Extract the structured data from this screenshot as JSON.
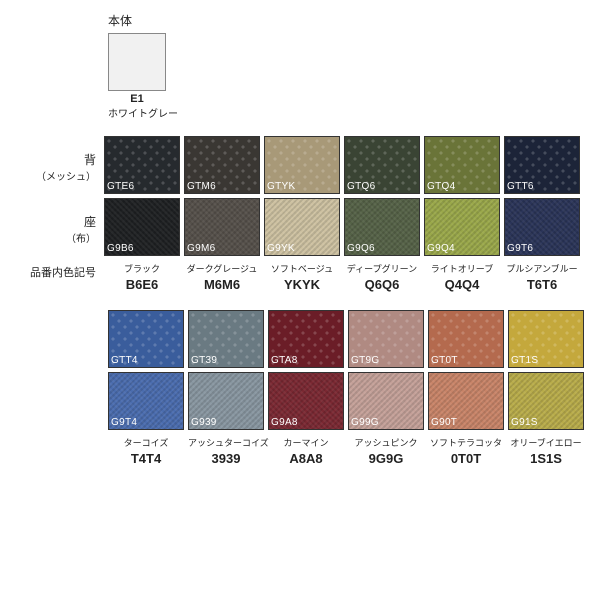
{
  "body": {
    "label": "本体",
    "swatch_bg": "#f1f1f1",
    "code": "E1",
    "name": "ホワイトグレー"
  },
  "row_labels": {
    "back": {
      "title": "背",
      "sub": "（メッシュ）"
    },
    "seat": {
      "title": "座",
      "sub": "（布）"
    },
    "combo": "品番内色記号"
  },
  "group1": [
    {
      "mesh_code": "GTE6",
      "mesh_bg": "#262a2e",
      "seat_code": "G9B6",
      "seat_bg": "#1e2022",
      "name": "ブラック",
      "combo": "B6E6"
    },
    {
      "mesh_code": "GTM6",
      "mesh_bg": "#3a3733",
      "seat_code": "G9M6",
      "seat_bg": "#55504a",
      "name": "ダークグレージュ",
      "combo": "M6M6"
    },
    {
      "mesh_code": "GTYK",
      "mesh_bg": "#a89978",
      "seat_code": "G9YK",
      "seat_bg": "#cdc1a1",
      "name": "ソフトベージュ",
      "combo": "YKYK"
    },
    {
      "mesh_code": "GTQ6",
      "mesh_bg": "#3a4434",
      "seat_code": "G9Q6",
      "seat_bg": "#556247",
      "name": "ディープグリーン",
      "combo": "Q6Q6"
    },
    {
      "mesh_code": "GTQ4",
      "mesh_bg": "#6a7438",
      "seat_code": "G9Q4",
      "seat_bg": "#9aa84a",
      "name": "ライトオリーブ",
      "combo": "Q4Q4"
    },
    {
      "mesh_code": "GTT6",
      "mesh_bg": "#1c2438",
      "seat_code": "G9T6",
      "seat_bg": "#2a3458",
      "name": "プルシアンブルー",
      "combo": "T6T6"
    }
  ],
  "group2": [
    {
      "mesh_code": "GTT4",
      "mesh_bg": "#3a5d9c",
      "seat_code": "G9T4",
      "seat_bg": "#4a6cae",
      "name": "ターコイズ",
      "combo": "T4T4"
    },
    {
      "mesh_code": "GT39",
      "mesh_bg": "#6a7a82",
      "seat_code": "G939",
      "seat_bg": "#8896a0",
      "name": "アッシュターコイズ",
      "combo": "3939"
    },
    {
      "mesh_code": "GTA8",
      "mesh_bg": "#6b1d27",
      "seat_code": "G9A8",
      "seat_bg": "#7a2832",
      "name": "カーマイン",
      "combo": "A8A8"
    },
    {
      "mesh_code": "GT9G",
      "mesh_bg": "#b08a82",
      "seat_code": "G99G",
      "seat_bg": "#c4a098",
      "name": "アッシュピンク",
      "combo": "9G9G"
    },
    {
      "mesh_code": "GT0T",
      "mesh_bg": "#b46a4e",
      "seat_code": "G90T",
      "seat_bg": "#c88468",
      "name": "ソフトテラコッタ",
      "combo": "0T0T"
    },
    {
      "mesh_code": "GT1S",
      "mesh_bg": "#c4a83c",
      "seat_code": "G91S",
      "seat_bg": "#b8ac4a",
      "name": "オリーブイエロー",
      "combo": "1S1S"
    }
  ]
}
